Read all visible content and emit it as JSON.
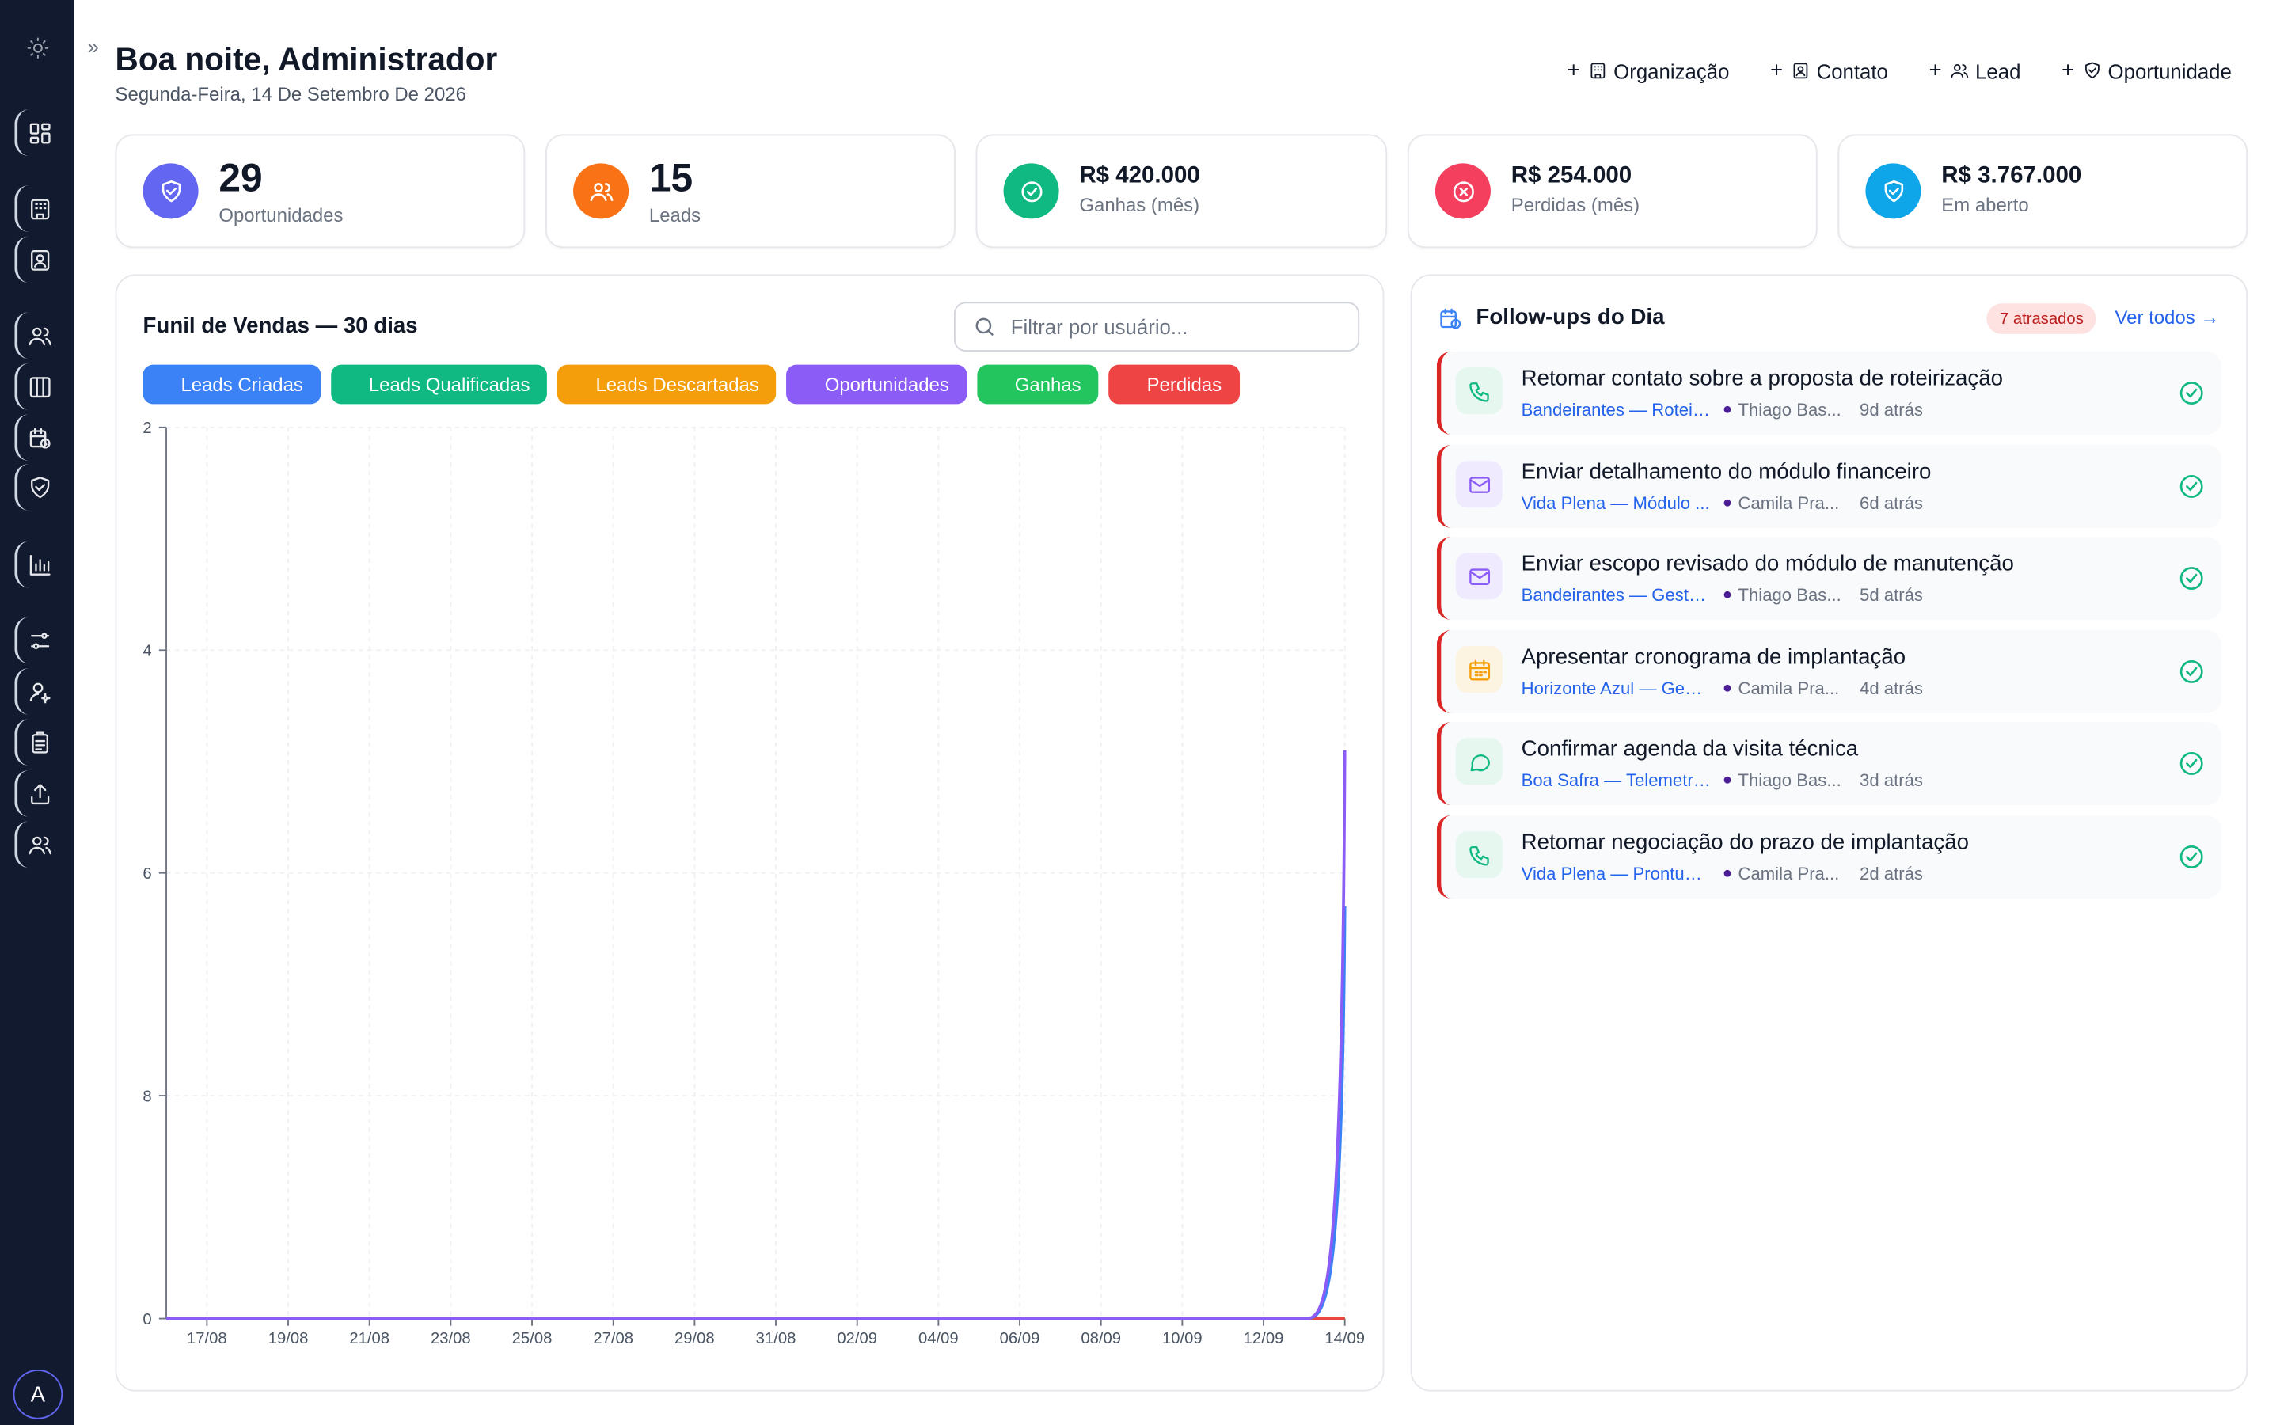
{
  "header": {
    "greeting": "Boa noite, Administrador",
    "date": "Segunda-Feira, 14 De Setembro De 2026"
  },
  "quick_actions": [
    {
      "label": "Organização",
      "icon": "building-icon"
    },
    {
      "label": "Contato",
      "icon": "contact-card-icon"
    },
    {
      "label": "Lead",
      "icon": "users-icon"
    },
    {
      "label": "Oportunidade",
      "icon": "handshake-icon"
    }
  ],
  "stats": [
    {
      "value": "29",
      "label": "Oportunidades",
      "icon": "handshake-icon",
      "color": "#6366f1"
    },
    {
      "value": "15",
      "label": "Leads",
      "icon": "users-icon",
      "color": "#f97316"
    },
    {
      "value": "R$ 420.000",
      "label": "Ganhas (mês)",
      "icon": "check-circle-icon",
      "color": "#10b981"
    },
    {
      "value": "R$ 254.000",
      "label": "Perdidas (mês)",
      "icon": "x-circle-icon",
      "color": "#f43f5e"
    },
    {
      "value": "R$ 3.767.000",
      "label": "Em aberto",
      "icon": "handshake-icon",
      "color": "#0ea5e9"
    }
  ],
  "funnel": {
    "title": "Funil de Vendas — 30 dias",
    "search_placeholder": "Filtrar por usuário...",
    "legend": [
      {
        "label": "Leads Criadas",
        "color": "#3b82f6"
      },
      {
        "label": "Leads Qualificadas",
        "color": "#10b981"
      },
      {
        "label": "Leads Descartadas",
        "color": "#f59e0b"
      },
      {
        "label": "Oportunidades",
        "color": "#8b5cf6"
      },
      {
        "label": "Ganhas",
        "color": "#22c55e"
      },
      {
        "label": "Perdidas",
        "color": "#ef4444"
      }
    ]
  },
  "chart_data": {
    "type": "line",
    "ylim": [
      0,
      8
    ],
    "y_ticks": [
      "0",
      "8",
      "6",
      "4",
      "2"
    ],
    "x": [
      "16/08",
      "17/08",
      "18/08",
      "19/08",
      "20/08",
      "21/08",
      "22/08",
      "23/08",
      "24/08",
      "25/08",
      "26/08",
      "27/08",
      "28/08",
      "29/08",
      "30/08",
      "31/08",
      "01/09",
      "02/09",
      "03/09",
      "04/09",
      "05/09",
      "06/09",
      "07/09",
      "08/09",
      "09/09",
      "10/09",
      "11/09",
      "12/09",
      "13/09",
      "14/09"
    ],
    "x_tick_labels": [
      "17/08",
      "19/08",
      "21/08",
      "23/08",
      "25/08",
      "27/08",
      "29/08",
      "31/08",
      "02/09",
      "04/09",
      "06/09",
      "08/09",
      "10/09",
      "12/09",
      "14/09"
    ],
    "series": [
      {
        "name": "Leads Criadas",
        "color": "#3b82f6",
        "values": [
          0,
          0,
          0,
          0,
          0,
          0,
          0,
          0,
          0,
          0,
          0,
          0,
          0,
          0,
          0,
          0,
          0,
          0,
          0,
          0,
          0,
          0,
          0,
          0,
          0,
          0,
          0,
          0,
          0,
          3.7
        ]
      },
      {
        "name": "Leads Qualificadas",
        "color": "#10b981",
        "values": [
          0,
          0,
          0,
          0,
          0,
          0,
          0,
          0,
          0,
          0,
          0,
          0,
          0,
          0,
          0,
          0,
          0,
          0,
          0,
          0,
          0,
          0,
          0,
          0,
          0,
          0,
          0,
          0,
          0,
          0
        ]
      },
      {
        "name": "Leads Descartadas",
        "color": "#f59e0b",
        "values": [
          0,
          0,
          0,
          0,
          0,
          0,
          0,
          0,
          0,
          0,
          0,
          0,
          0,
          0,
          0,
          0,
          0,
          0,
          0,
          0,
          0,
          0,
          0,
          0,
          0,
          0,
          0,
          0,
          0,
          0
        ]
      },
      {
        "name": "Oportunidades",
        "color": "#8b5cf6",
        "values": [
          0,
          0,
          0,
          0,
          0,
          0,
          0,
          0,
          0,
          0,
          0,
          0,
          0,
          0,
          0,
          0,
          0,
          0,
          0,
          0,
          0,
          0,
          0,
          0,
          0,
          0,
          0,
          0,
          0,
          5.1
        ]
      },
      {
        "name": "Ganhas",
        "color": "#22c55e",
        "values": [
          0,
          0,
          0,
          0,
          0,
          0,
          0,
          0,
          0,
          0,
          0,
          0,
          0,
          0,
          0,
          0,
          0,
          0,
          0,
          0,
          0,
          0,
          0,
          0,
          0,
          0,
          0,
          0,
          0,
          0
        ]
      },
      {
        "name": "Perdidas",
        "color": "#ef4444",
        "values": [
          0,
          0,
          0,
          0,
          0,
          0,
          0,
          0,
          0,
          0,
          0,
          0,
          0,
          0,
          0,
          0,
          0,
          0,
          0,
          0,
          0,
          0,
          0,
          0,
          0,
          0,
          0,
          0,
          0,
          0
        ]
      }
    ]
  },
  "followups": {
    "title": "Follow-ups do Dia",
    "late_badge": "7 atrasados",
    "see_all": "Ver todos →",
    "items": [
      {
        "title": "Retomar contato sobre a proposta de roteirização",
        "org": "Bandeirantes — Roteir...",
        "user": "Thiago Bas...",
        "ago": "9d atrás",
        "icon": "phone-icon",
        "icon_color": "#10b981"
      },
      {
        "title": "Enviar detalhamento do módulo financeiro",
        "org": "Vida Plena — Módulo ...",
        "user": "Camila Pra...",
        "ago": "6d atrás",
        "icon": "mail-icon",
        "icon_color": "#8b5cf6"
      },
      {
        "title": "Enviar escopo revisado do módulo de manutenção",
        "org": "Bandeirantes — Gestã...",
        "user": "Thiago Bas...",
        "ago": "5d atrás",
        "icon": "mail-icon",
        "icon_color": "#8b5cf6"
      },
      {
        "title": "Apresentar cronograma de implantação",
        "org": "Horizonte Azul — Gest...",
        "user": "Camila Pra...",
        "ago": "4d atrás",
        "icon": "calendar-icon",
        "icon_color": "#f59e0b"
      },
      {
        "title": "Confirmar agenda da visita técnica",
        "org": "Boa Safra — Telemetri...",
        "user": "Thiago Bas...",
        "ago": "3d atrás",
        "icon": "message-icon",
        "icon_color": "#10b981"
      },
      {
        "title": "Retomar negociação do prazo de implantação",
        "org": "Vida Plena — Prontuár...",
        "user": "Camila Pra...",
        "ago": "2d atrás",
        "icon": "phone-icon",
        "icon_color": "#10b981"
      }
    ]
  },
  "user": {
    "initial": "A"
  }
}
